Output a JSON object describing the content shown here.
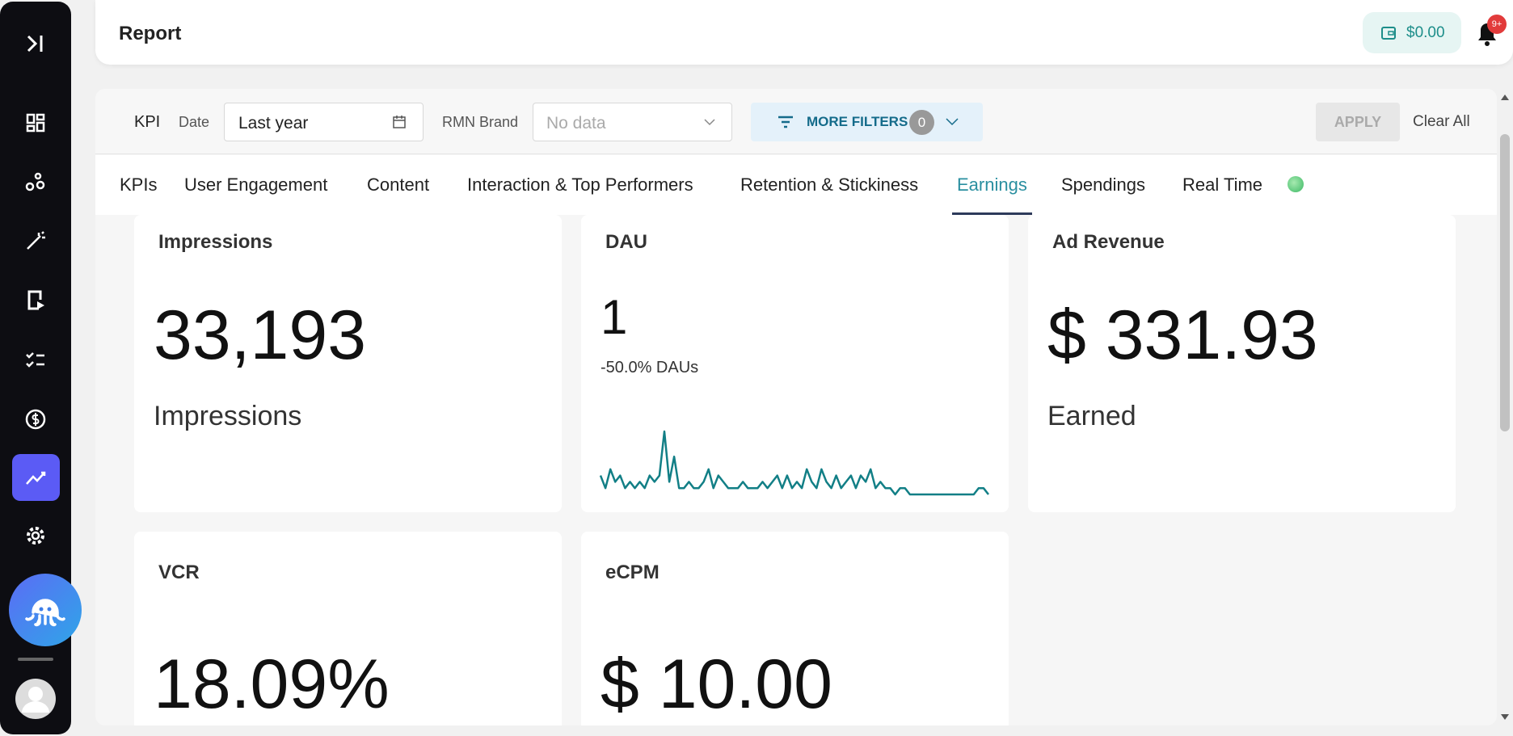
{
  "header": {
    "title": "Report",
    "wallet": "$0.00",
    "notifications": "9+"
  },
  "filters": {
    "kpi": "KPI",
    "date_label": "Date",
    "date_value": "Last year",
    "brand_label": "RMN Brand",
    "brand_value": "No data",
    "more_filters": "MORE FILTERS",
    "filter_count": "0",
    "apply": "APPLY",
    "clear": "Clear All"
  },
  "tabs": [
    {
      "label": "KPIs"
    },
    {
      "label": "User Engagement"
    },
    {
      "label": "Content"
    },
    {
      "label": "Interaction & Top Performers"
    },
    {
      "label": "Retention & Stickiness"
    },
    {
      "label": "Earnings",
      "active": true
    },
    {
      "label": "Spendings"
    },
    {
      "label": "Real Time",
      "live": true
    }
  ],
  "cards": [
    {
      "title": "Impressions",
      "value": "33,193",
      "caption": "Impressions"
    },
    {
      "title": "DAU",
      "value": "1",
      "change": "-50.0% DAUs",
      "sparkline": {
        "type": "line",
        "color": "#127f86",
        "values": [
          3,
          1,
          4,
          2,
          3,
          1,
          2,
          1,
          2,
          1,
          3,
          2,
          3,
          10,
          2,
          6,
          1,
          1,
          2,
          1,
          1,
          2,
          4,
          1,
          3,
          2,
          1,
          1,
          1,
          2,
          1,
          1,
          1,
          2,
          1,
          2,
          3,
          1,
          3,
          1,
          2,
          1,
          4,
          2,
          1,
          4,
          2,
          1,
          3,
          1,
          2,
          3,
          1,
          3,
          2,
          4,
          1,
          2,
          1,
          1,
          0,
          1,
          1,
          0,
          0,
          0,
          0,
          0,
          0,
          0,
          0,
          0,
          0,
          0,
          0,
          0,
          0,
          1,
          1,
          0
        ]
      }
    },
    {
      "title": "Ad Revenue",
      "value": "$ 331.93",
      "caption": "Earned"
    },
    {
      "title": "VCR",
      "value": "18.09%"
    },
    {
      "title": "eCPM",
      "value": "$ 10.00"
    }
  ]
}
